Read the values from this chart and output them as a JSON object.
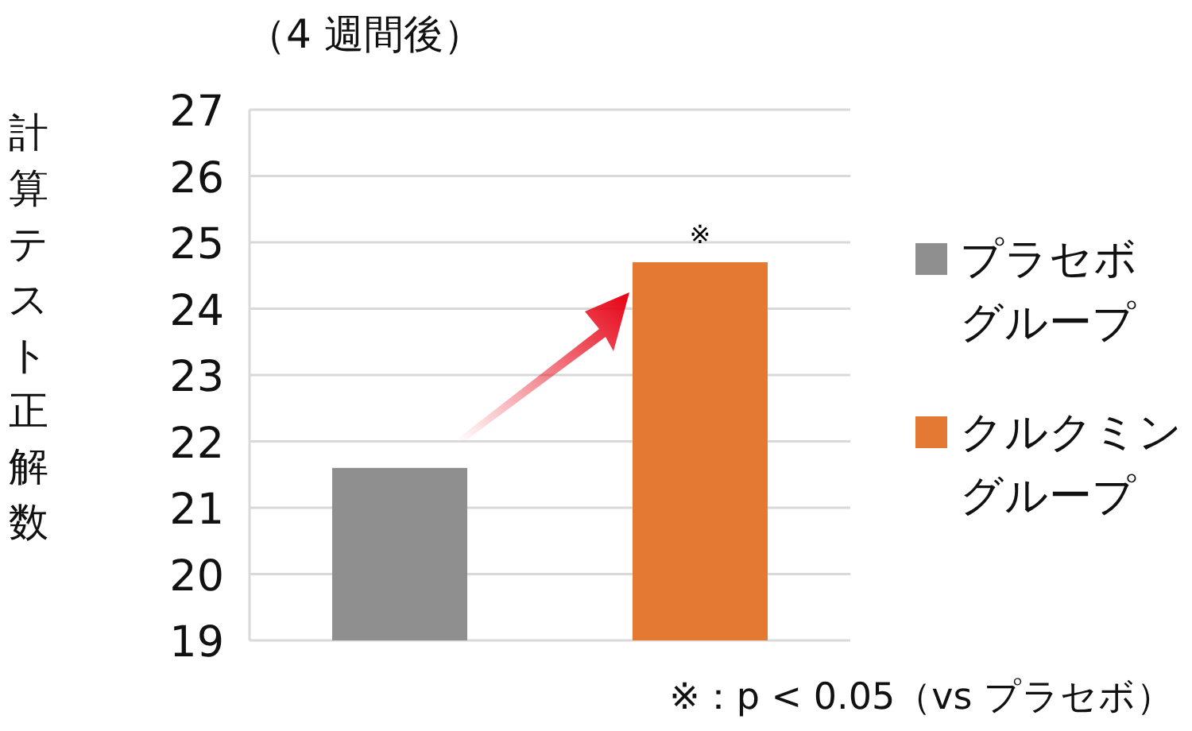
{
  "chart_data": {
    "type": "bar",
    "title": "（4 週間後）",
    "ylabel": "計算テスト正解数",
    "categories": [
      null,
      null
    ],
    "series": [
      {
        "name": "プラセボグループ",
        "color": "#8f8f8f",
        "values": [
          21.6,
          null
        ]
      },
      {
        "name": "クルクミングループ",
        "color": "#e37933",
        "values": [
          null,
          24.7
        ]
      }
    ],
    "ylim": [
      19,
      27
    ],
    "yticks": [
      19,
      20,
      21,
      22,
      23,
      24,
      25,
      26,
      27
    ],
    "grid": "y",
    "legend": "right",
    "annotations": [
      "※",
      "※：p < 0.05（vs プラセボ）"
    ]
  }
}
